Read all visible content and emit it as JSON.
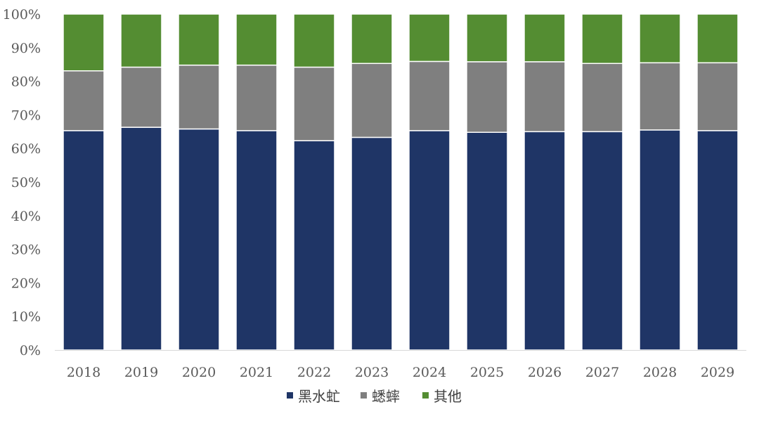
{
  "chart_data": {
    "type": "bar",
    "stacked": true,
    "categories": [
      "2018",
      "2019",
      "2020",
      "2021",
      "2022",
      "2023",
      "2024",
      "2025",
      "2026",
      "2027",
      "2028",
      "2029"
    ],
    "series": [
      {
        "name": "黑水虻",
        "color": "#1f3566",
        "values": [
          65.3,
          66.3,
          65.8,
          65.3,
          62.3,
          63.3,
          65.3,
          64.8,
          65.0,
          65.0,
          65.5,
          65.3
        ]
      },
      {
        "name": "蟋蟀",
        "color": "#7f7f7f",
        "values": [
          17.8,
          17.9,
          19.0,
          19.5,
          21.9,
          22.0,
          20.6,
          21.0,
          20.8,
          20.3,
          20.0,
          20.2
        ]
      },
      {
        "name": "其他",
        "color": "#548d32",
        "values": [
          16.9,
          15.8,
          15.2,
          15.2,
          15.8,
          14.7,
          14.1,
          14.2,
          14.2,
          14.7,
          14.5,
          14.5
        ]
      }
    ],
    "ylim": [
      0,
      100
    ],
    "yticks": [
      "0%",
      "10%",
      "20%",
      "30%",
      "40%",
      "50%",
      "60%",
      "70%",
      "80%",
      "90%",
      "100%"
    ],
    "grid": false,
    "legend_position": "bottom",
    "title": "",
    "xlabel": "",
    "ylabel": ""
  }
}
